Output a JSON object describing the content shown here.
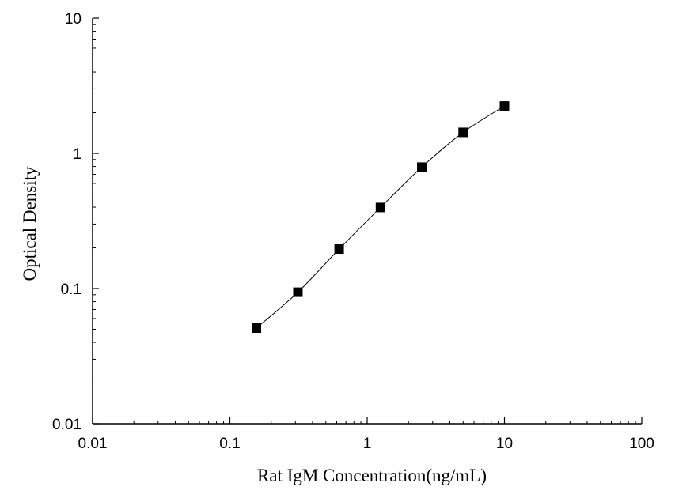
{
  "chart_data": {
    "type": "scatter",
    "title": "",
    "xlabel": "Rat IgM Concentration(ng/mL)",
    "ylabel": "Optical Density",
    "x_scale": "log",
    "y_scale": "log",
    "xlim": [
      0.01,
      100
    ],
    "ylim": [
      0.01,
      10
    ],
    "x_ticks": [
      "0.01",
      "0.1",
      "1",
      "10",
      "100"
    ],
    "y_ticks": [
      "0.01",
      "0.1",
      "1",
      "10"
    ],
    "grid": false,
    "legend": "none",
    "series": [
      {
        "x": [
          0.156,
          0.313,
          0.625,
          1.25,
          2.5,
          5,
          10
        ],
        "y": [
          0.051,
          0.094,
          0.196,
          0.398,
          0.791,
          1.43,
          2.24
        ],
        "marker": "square",
        "fit_curve": true
      }
    ],
    "colors": {
      "marker": "#000000",
      "line": "#000000"
    }
  }
}
